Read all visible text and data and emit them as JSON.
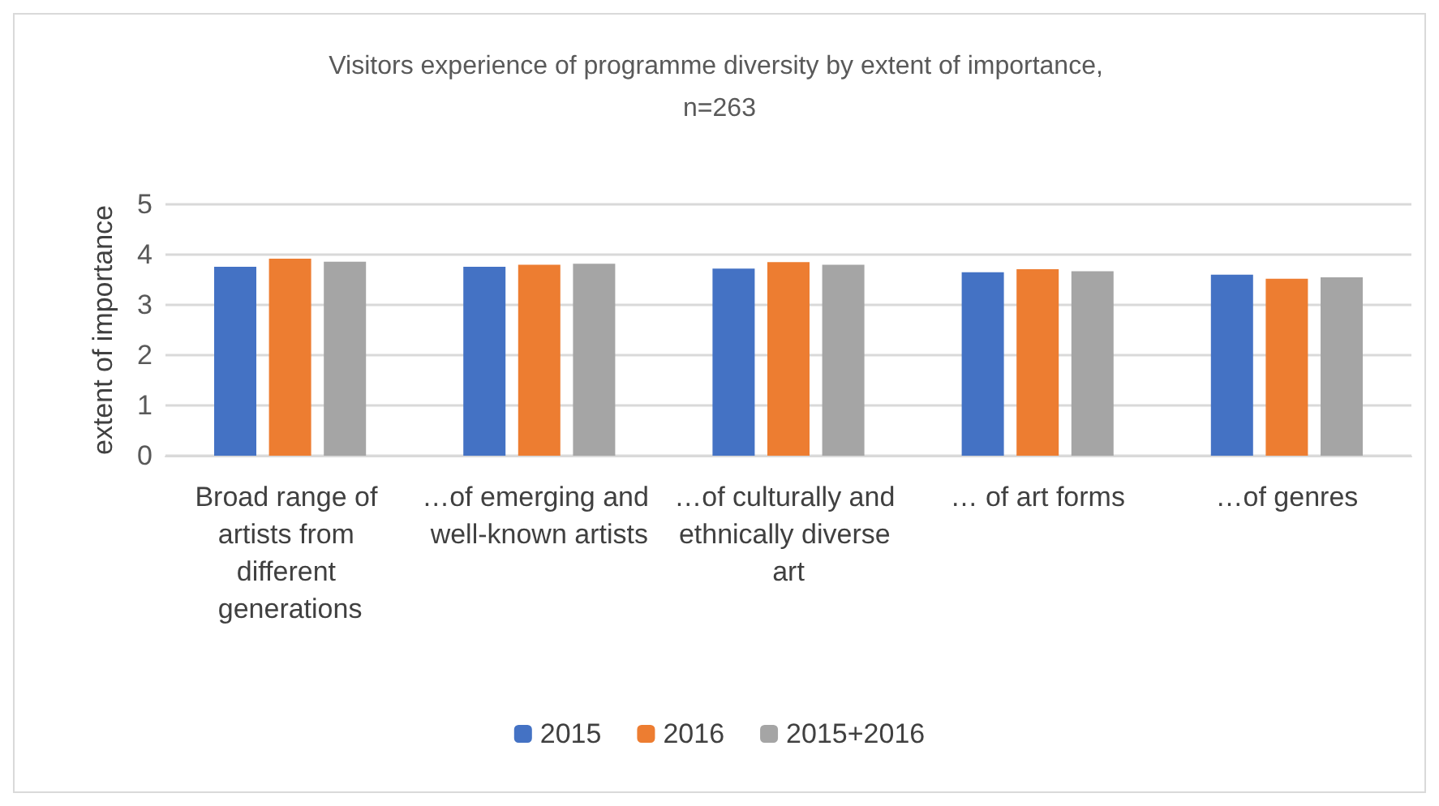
{
  "chart_data": {
    "type": "bar",
    "title": "Visitors experience of programme diversity by extent of importance, n=263",
    "ylabel": "extent of importance",
    "categories": [
      "Broad range of artists from different generations",
      "…of emerging and well-known artists",
      "…of culturally and ethnically diverse art",
      "… of art forms",
      "…of genres"
    ],
    "series": [
      {
        "name": "2015",
        "color": "#4472c4",
        "values": [
          3.76,
          3.76,
          3.72,
          3.65,
          3.6
        ]
      },
      {
        "name": "2016",
        "color": "#ed7d31",
        "values": [
          3.92,
          3.8,
          3.85,
          3.71,
          3.52
        ]
      },
      {
        "name": "2015+2016",
        "color": "#a5a5a5",
        "values": [
          3.86,
          3.82,
          3.8,
          3.67,
          3.55
        ]
      }
    ],
    "ylim": [
      0,
      5
    ],
    "yticks": [
      0,
      1,
      2,
      3,
      4,
      5
    ],
    "grid": "y",
    "legend": "bottom"
  }
}
